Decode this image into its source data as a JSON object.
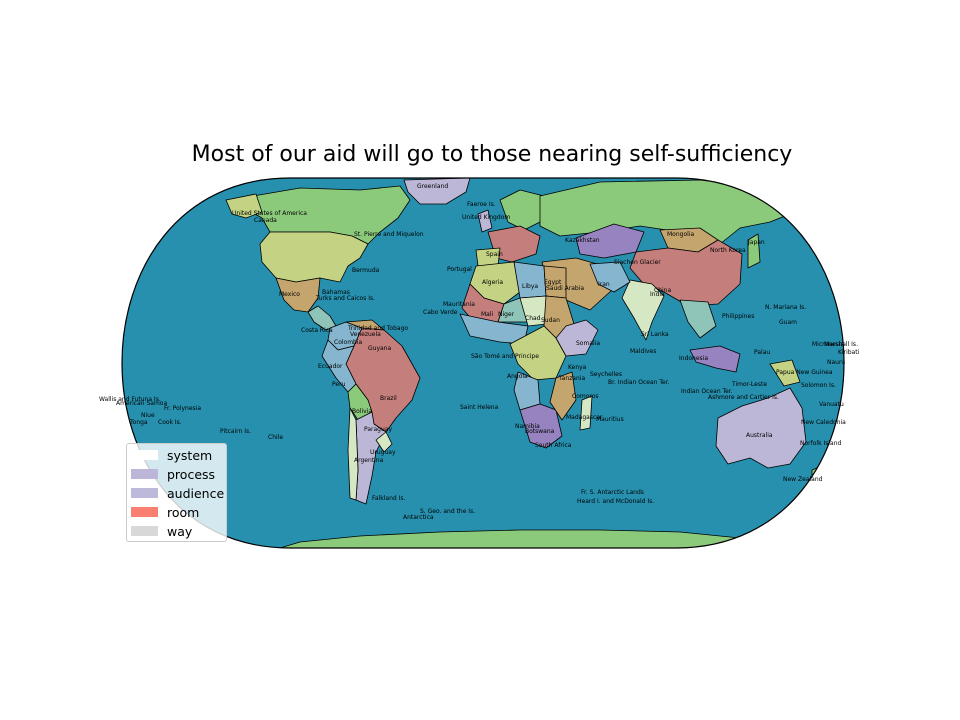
{
  "title": "Most of our aid will go to those nearing self-sufficiency",
  "colors": {
    "ocean": "#2690ae",
    "land_green": "#8cca7b",
    "land_yellowgreen": "#c3d383",
    "land_salmon": "#c47e7c",
    "land_tan": "#c4a56e",
    "land_purple": "#9783bf",
    "land_lavender": "#bdb7d7",
    "land_lightblue": "#86b6cf",
    "land_pale": "#d6e8c3",
    "land_teal": "#8fc5b8"
  },
  "legend": [
    {
      "label": "system",
      "color": "#ffffff"
    },
    {
      "label": "process",
      "color": "#bcb6d8"
    },
    {
      "label": "audience",
      "color": "#bdb9da"
    },
    {
      "label": "room",
      "color": "#f98071"
    },
    {
      "label": "way",
      "color": "#d8d8d8"
    }
  ],
  "labels": {
    "greenland": "Greenland",
    "usa": "United States of America",
    "canada": "Canada",
    "stpierre": "St. Pierre and Miquelon",
    "bermuda": "Bermuda",
    "mexico": "Mexico",
    "bahamas": "Bahamas",
    "turks": "Turks and Caicos Is.",
    "trinidad": "Trinidad and Tobago",
    "costarica": "Costa Rica",
    "venezuela": "Venezuela",
    "colombia": "Colombia",
    "guyana": "Guyana",
    "ecuador": "Ecuador",
    "peru": "Peru",
    "brazil": "Brazil",
    "bolivia": "Bolivia",
    "paraguay": "Paraguay",
    "chile": "Chile",
    "argentina": "Argentina",
    "uruguay": "Uruguay",
    "falkland": "Falkland Is.",
    "sgeorgia": "S. Geo. and the Is.",
    "antarctica": "Antarctica",
    "faeroe": "Faeroe Is.",
    "uk": "United Kingdom",
    "spain": "Spain",
    "portugal": "Portugal",
    "algeria": "Algeria",
    "libya": "Libya",
    "egypt": "Egypt",
    "mauritania": "Mauritania",
    "mali": "Mali",
    "niger": "Niger",
    "chad": "Chad",
    "sudan": "Sudan",
    "caboverde": "Cabo Verde",
    "saotome": "São Tomé and Principe",
    "angola": "Angola",
    "namibia": "Namibia",
    "botswana": "Botswana",
    "southafrica": "South Africa",
    "tanzania": "Tanzania",
    "kenya": "Kenya",
    "somalia": "Somalia",
    "madagascar": "Madagascar",
    "mauritius": "Mauritius",
    "seychelles": "Seychelles",
    "sthelena": "Saint Helena",
    "saudi": "Saudi Arabia",
    "iran": "Iran",
    "kazakhstan": "Kazakhstan",
    "mongolia": "Mongolia",
    "northkorea": "North Korea",
    "japan": "Japan",
    "china": "China",
    "india": "India",
    "srilanka": "Sri Lanka",
    "maldives": "Maldives",
    "philippines": "Philippines",
    "indonesia": "Indonesia",
    "papua": "Papua New Guinea",
    "australia": "Australia",
    "newzealand": "New Zealand",
    "newcaledonia": "New Caledonia",
    "vanuatu": "Vanuatu",
    "solomon": "Solomon Is.",
    "nauru": "Nauru",
    "kiribati": "Kiribati",
    "marshall": "Marshall Is.",
    "guam": "Guam",
    "nmariana": "N. Mariana Is.",
    "palau": "Palau",
    "micronesia": "Micronesia",
    "norfolk": "Norfolk Island",
    "ashmore": "Ashmore and Cartier Is.",
    "brindian": "Br. Indian Ocean Ter.",
    "indianocean": "Indian Ocean Ter.",
    "frantarctic": "Fr. S. Antarctic Lands",
    "heard": "Heard I. and McDonald Is.",
    "wallis": "Wallis and Futuna Is.",
    "samoa": "American Samoa",
    "niue": "Niue",
    "tonga": "Tonga",
    "cook": "Cook Is.",
    "frpolynesia": "Fr. Polynesia",
    "pitcairn": "Pitcairn Is.",
    "siachen": "Siachen Glacier",
    "comoros": "Comoros",
    "timor": "Timor-Leste"
  }
}
